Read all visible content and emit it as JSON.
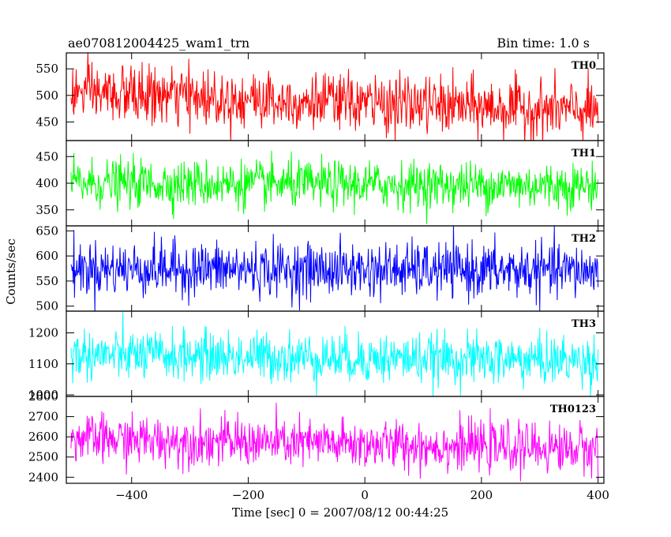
{
  "header": {
    "left_title": "ae070812004425_wam1_trn",
    "right_title": "Bin time: 1.0 s"
  },
  "chart_data": {
    "type": "line",
    "title": "ae070812004425_wam1_trn",
    "subtitle": "Bin time: 1.0 s",
    "xlabel": "Time [sec] 0 = 2007/08/12 00:44:25",
    "ylabel": "Counts/sec",
    "xlim": [
      -512,
      410
    ],
    "x_ticks": [
      -400,
      -200,
      0,
      200,
      400
    ],
    "x_tick_labels": [
      "−400",
      "−200",
      "0",
      "200",
      "400"
    ],
    "x_range_data": [
      -504,
      400
    ],
    "bin_time_s": 1.0,
    "grid": false,
    "legend": "none",
    "panels": [
      {
        "label": "TH0",
        "color": "#ff0000",
        "ylim": [
          415,
          580
        ],
        "y_ticks": [
          450,
          500,
          550
        ],
        "y_tick_labels": [
          "450",
          "500",
          "550"
        ],
        "mean_start": 505,
        "mean_end": 470,
        "std": 27
      },
      {
        "label": "TH1",
        "color": "#00ff00",
        "ylim": [
          320,
          480
        ],
        "y_ticks": [
          350,
          400,
          450
        ],
        "y_tick_labels": [
          "350",
          "400",
          "450"
        ],
        "mean_start": 400,
        "mean_end": 395,
        "std": 22
      },
      {
        "label": "TH2",
        "color": "#0000ff",
        "ylim": [
          490,
          660
        ],
        "y_ticks": [
          500,
          550,
          600,
          650
        ],
        "y_tick_labels": [
          "500",
          "550",
          "600",
          "650"
        ],
        "mean_start": 575,
        "mean_end": 570,
        "std": 27
      },
      {
        "label": "TH3",
        "color": "#00ffff",
        "ylim": [
          995,
          1270
        ],
        "y_ticks": [
          1000,
          1100,
          1200
        ],
        "y_tick_labels": [
          "1000",
          "1100",
          "1200"
        ],
        "mean_start": 1130,
        "mean_end": 1110,
        "std": 40
      },
      {
        "label": "TH0123",
        "color": "#ff00ff",
        "ylim": [
          2370,
          2800
        ],
        "y_ticks": [
          2400,
          2500,
          2600,
          2700,
          2800
        ],
        "y_tick_labels": [
          "2400",
          "2500",
          "2600",
          "2700",
          "2800"
        ],
        "mean_start": 2590,
        "mean_end": 2540,
        "std": 60
      }
    ]
  }
}
